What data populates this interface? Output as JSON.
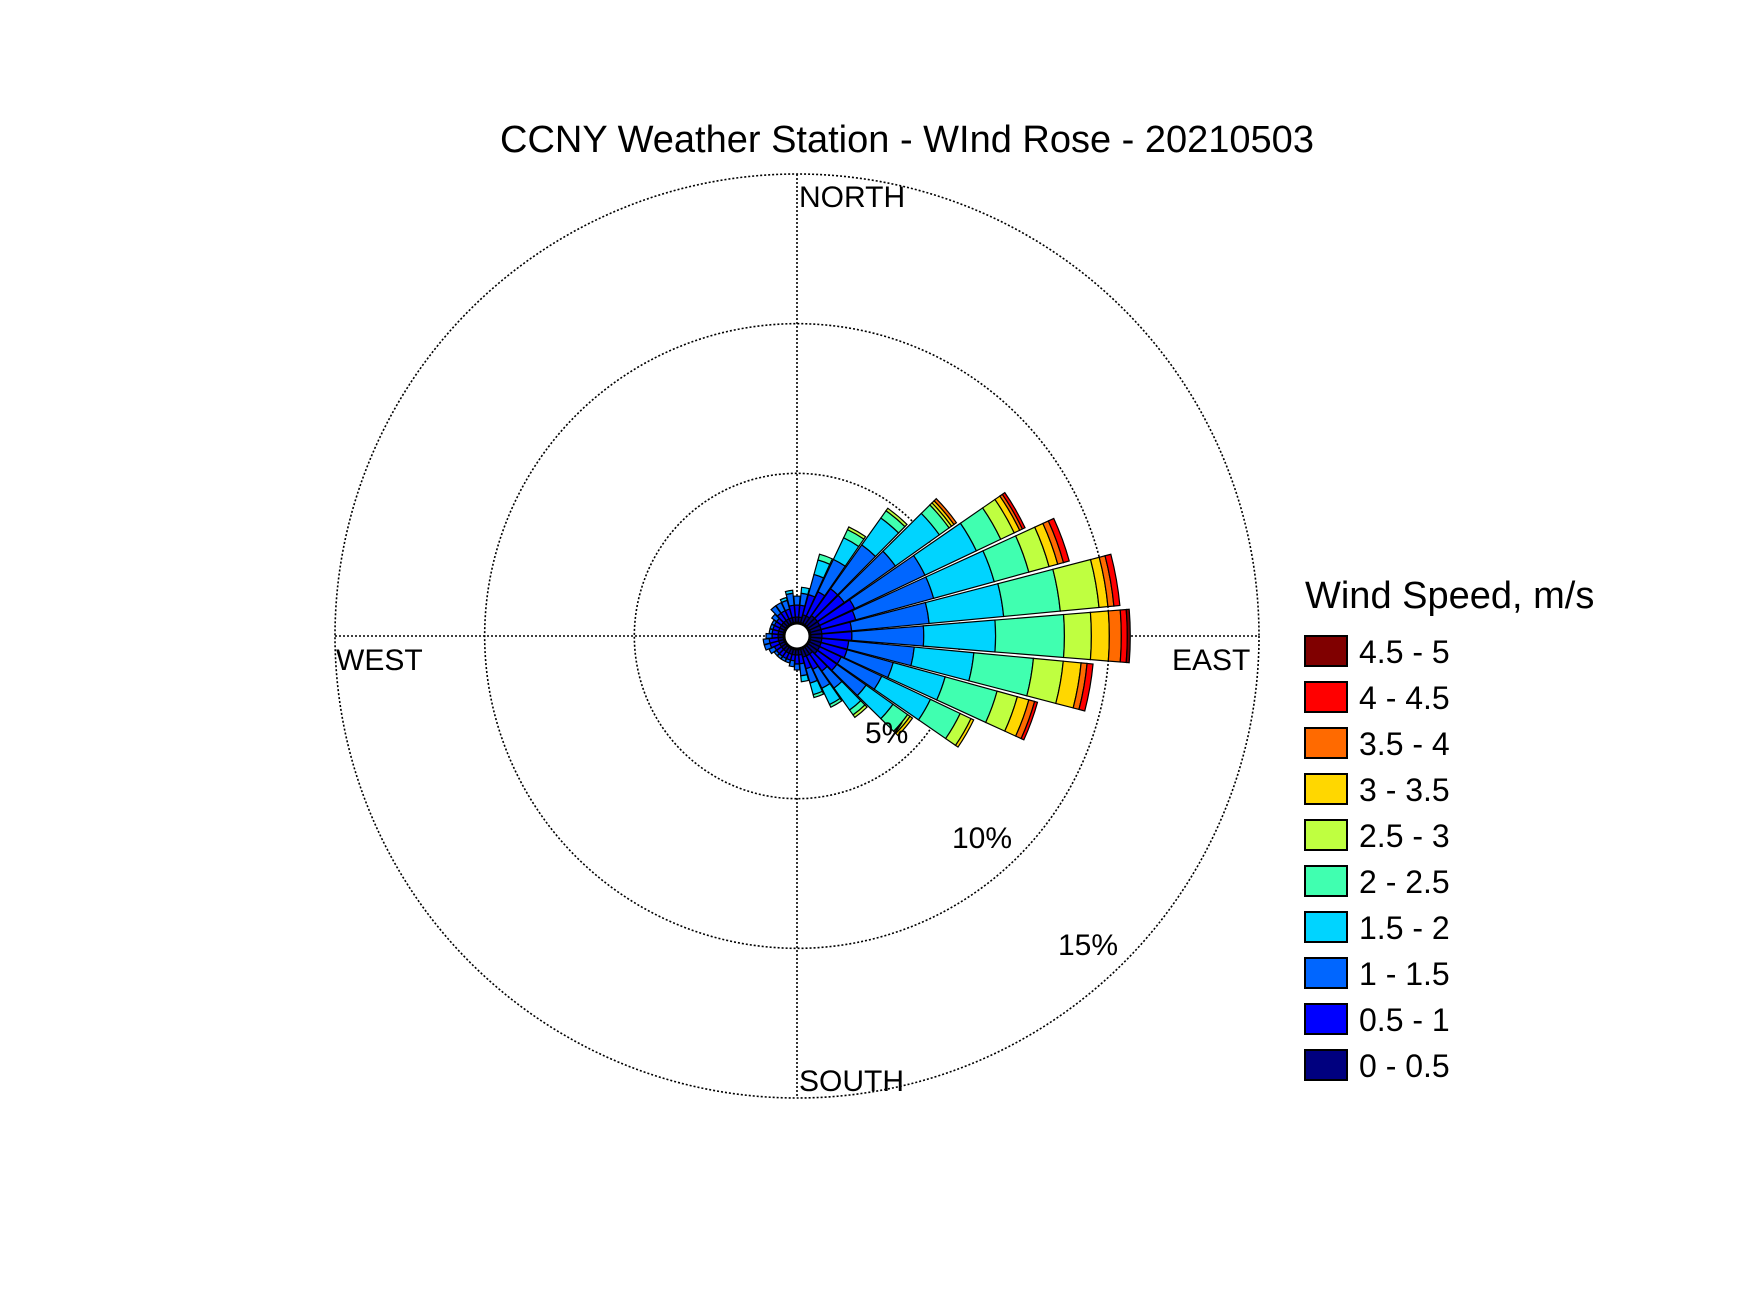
{
  "chart_data": {
    "type": "windrose",
    "title": "CCNY Weather Station - WInd Rose - 20210503",
    "directions": {
      "north": "NORTH",
      "east": "EAST",
      "south": "SOUTH",
      "west": "WEST"
    },
    "radial_axis": {
      "max": 15,
      "rings": [
        5,
        10,
        15
      ],
      "ring_labels": [
        "5%",
        "10%",
        "15%"
      ],
      "unit": "%"
    },
    "legend": {
      "title": "Wind Speed, m/s",
      "placement": "right",
      "bins": [
        {
          "label": "4.5 - 5",
          "color": "#800000"
        },
        {
          "label": "4 - 4.5",
          "color": "#ff0000"
        },
        {
          "label": "3.5 - 4",
          "color": "#ff6a00"
        },
        {
          "label": "3 - 3.5",
          "color": "#ffd700"
        },
        {
          "label": "2.5 - 3",
          "color": "#bfff40"
        },
        {
          "label": "2 - 2.5",
          "color": "#40ffb0"
        },
        {
          "label": "1.5 - 2",
          "color": "#00d4ff"
        },
        {
          "label": "1 - 1.5",
          "color": "#0066ff"
        },
        {
          "label": "0.5 - 1",
          "color": "#0000ff"
        },
        {
          "label": "0 - 0.5",
          "color": "#00007f"
        }
      ]
    },
    "sector_width_deg": 10,
    "sectors": [
      {
        "dir": 0,
        "cum": [
          0.2,
          0.6,
          0.9
        ]
      },
      {
        "dir": 10,
        "cum": [
          0.2,
          0.6,
          1.0,
          1.2
        ]
      },
      {
        "dir": 20,
        "cum": [
          0.3,
          1.0,
          1.7,
          2.2,
          2.4
        ]
      },
      {
        "dir": 30,
        "cum": [
          0.3,
          1.2,
          2.4,
          3.2,
          3.5,
          3.6
        ]
      },
      {
        "dir": 40,
        "cum": [
          0.4,
          1.5,
          3.3,
          4.4,
          4.7,
          4.8
        ]
      },
      {
        "dir": 50,
        "cum": [
          0.4,
          1.5,
          3.6,
          5.4,
          5.8,
          5.9,
          6.0,
          6.1
        ]
      },
      {
        "dir": 60,
        "cum": [
          0.4,
          1.7,
          4.3,
          6.2,
          7.1,
          7.6,
          7.8,
          7.9,
          8.0
        ]
      },
      {
        "dir": 70,
        "cum": [
          0.4,
          1.6,
          4.3,
          6.4,
          7.6,
          8.3,
          8.6,
          8.8,
          9.0
        ]
      },
      {
        "dir": 80,
        "cum": [
          0.4,
          1.4,
          4.0,
          6.5,
          8.4,
          9.7,
          10.0,
          10.2,
          10.4
        ]
      },
      {
        "dir": 90,
        "cum": [
          0.4,
          1.4,
          3.8,
          6.2,
          8.5,
          9.4,
          10.0,
          10.4,
          10.6,
          10.7
        ]
      },
      {
        "dir": 100,
        "cum": [
          0.4,
          1.3,
          3.5,
          5.5,
          7.5,
          8.5,
          9.1,
          9.3,
          9.5
        ]
      },
      {
        "dir": 110,
        "cum": [
          0.4,
          1.3,
          2.9,
          4.7,
          6.5,
          7.2,
          7.6,
          7.8,
          7.9
        ]
      },
      {
        "dir": 120,
        "cum": [
          0.4,
          1.2,
          2.7,
          4.5,
          5.6,
          6.0,
          6.1
        ]
      },
      {
        "dir": 130,
        "cum": [
          0.4,
          1.2,
          2.4,
          3.5,
          4.1,
          4.2,
          4.3
        ]
      },
      {
        "dir": 140,
        "cum": [
          0.3,
          1.0,
          1.7,
          2.6,
          2.8,
          2.9
        ]
      },
      {
        "dir": 150,
        "cum": [
          0.3,
          0.8,
          1.5,
          2.1,
          2.2
        ]
      },
      {
        "dir": 160,
        "cum": [
          0.3,
          0.7,
          1.2,
          1.6,
          1.7
        ]
      },
      {
        "dir": 170,
        "cum": [
          0.2,
          0.5,
          0.9,
          1.1
        ]
      },
      {
        "dir": 180,
        "cum": [
          0.2,
          0.5,
          0.7
        ]
      },
      {
        "dir": 190,
        "cum": [
          0.2,
          0.4,
          0.6
        ]
      },
      {
        "dir": 200,
        "cum": [
          0.2,
          0.4,
          0.5
        ]
      },
      {
        "dir": 210,
        "cum": [
          0.2,
          0.4,
          0.5
        ]
      },
      {
        "dir": 220,
        "cum": [
          0.2,
          0.4,
          0.5
        ]
      },
      {
        "dir": 230,
        "cum": [
          0.2,
          0.4,
          0.5
        ]
      },
      {
        "dir": 240,
        "cum": [
          0.2,
          0.4,
          0.6
        ]
      },
      {
        "dir": 250,
        "cum": [
          0.2,
          0.5,
          0.7
        ]
      },
      {
        "dir": 260,
        "cum": [
          0.2,
          0.5,
          0.7
        ]
      },
      {
        "dir": 270,
        "cum": [
          0.2,
          0.4,
          0.6
        ]
      },
      {
        "dir": 280,
        "cum": [
          0.2,
          0.4,
          0.5
        ]
      },
      {
        "dir": 290,
        "cum": [
          0.2,
          0.4,
          0.5
        ]
      },
      {
        "dir": 300,
        "cum": [
          0.2,
          0.4,
          0.5
        ]
      },
      {
        "dir": 310,
        "cum": [
          0.2,
          0.4,
          0.6
        ]
      },
      {
        "dir": 320,
        "cum": [
          0.2,
          0.5,
          0.8
        ]
      },
      {
        "dir": 330,
        "cum": [
          0.2,
          0.5,
          0.8
        ]
      },
      {
        "dir": 340,
        "cum": [
          0.2,
          0.5,
          0.8,
          0.9
        ]
      },
      {
        "dir": 350,
        "cum": [
          0.2,
          0.6,
          1.0,
          1.1
        ]
      }
    ]
  }
}
